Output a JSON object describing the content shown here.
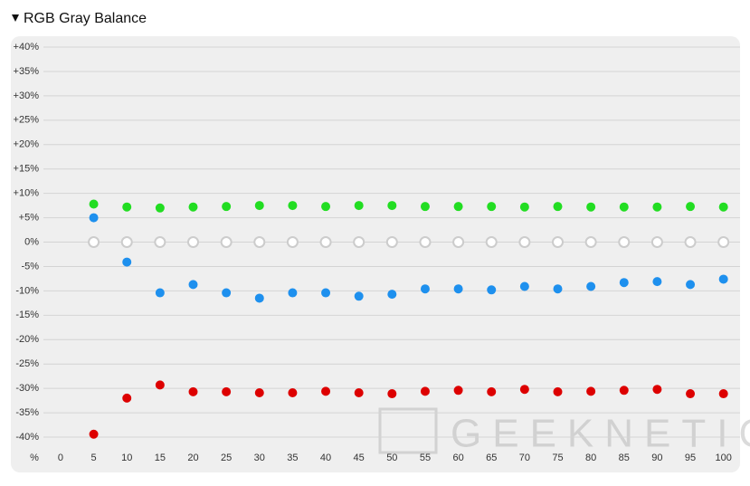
{
  "chart_data": {
    "type": "scatter",
    "title": "RGB Gray Balance",
    "x_label": "%",
    "watermark": "GEEKNETIC",
    "xlim": [
      -7.5,
      102.5
    ],
    "xticks": [
      0,
      5,
      10,
      15,
      20,
      25,
      30,
      35,
      40,
      45,
      50,
      55,
      60,
      65,
      70,
      75,
      80,
      85,
      90,
      95,
      100
    ],
    "ylim": [
      -40,
      40
    ],
    "yticks": [
      {
        "value": 40,
        "label": "+40%"
      },
      {
        "value": 35,
        "label": "+35%"
      },
      {
        "value": 30,
        "label": "+30%"
      },
      {
        "value": 25,
        "label": "+25%"
      },
      {
        "value": 20,
        "label": "+20%"
      },
      {
        "value": 15,
        "label": "+15%"
      },
      {
        "value": 10,
        "label": "+10%"
      },
      {
        "value": 5,
        "label": "+5%"
      },
      {
        "value": 0,
        "label": "0%"
      },
      {
        "value": -5,
        "label": "-5%"
      },
      {
        "value": -10,
        "label": "-10%"
      },
      {
        "value": -15,
        "label": "-15%"
      },
      {
        "value": -20,
        "label": "-20%"
      },
      {
        "value": -25,
        "label": "-25%"
      },
      {
        "value": -30,
        "label": "-30%"
      },
      {
        "value": -35,
        "label": "-35%"
      },
      {
        "value": -40,
        "label": "-40%"
      }
    ],
    "grid": true,
    "x": [
      5,
      10,
      15,
      20,
      25,
      30,
      35,
      40,
      45,
      50,
      55,
      60,
      65,
      70,
      75,
      80,
      85,
      90,
      95,
      100
    ],
    "series": [
      {
        "color": "#cccccc",
        "marker": "hollow",
        "values": [
          0,
          0,
          0,
          0,
          0,
          0,
          0,
          0,
          0,
          0,
          0,
          0,
          0,
          0,
          0,
          0,
          0,
          0,
          0,
          0
        ]
      },
      {
        "color": "#22dd22",
        "marker": "filled",
        "values": [
          7.8,
          7.2,
          7.0,
          7.2,
          7.3,
          7.5,
          7.5,
          7.3,
          7.5,
          7.5,
          7.3,
          7.3,
          7.3,
          7.2,
          7.3,
          7.2,
          7.2,
          7.2,
          7.3,
          7.2
        ]
      },
      {
        "color": "#1e90ee",
        "marker": "filled",
        "values": [
          5.0,
          -4.1,
          -10.4,
          -8.7,
          -10.4,
          -11.5,
          -10.4,
          -10.4,
          -11.1,
          -10.7,
          -9.6,
          -9.6,
          -9.8,
          -9.1,
          -9.6,
          -9.1,
          -8.3,
          -8.1,
          -8.7,
          -7.6
        ]
      },
      {
        "color": "#dd0000",
        "marker": "filled",
        "values": [
          -39.4,
          -32.0,
          -29.3,
          -30.7,
          -30.7,
          -30.9,
          -30.9,
          -30.6,
          -30.9,
          -31.1,
          -30.6,
          -30.4,
          -30.7,
          -30.2,
          -30.7,
          -30.6,
          -30.4,
          -30.2,
          -31.1,
          -31.1
        ]
      }
    ]
  }
}
